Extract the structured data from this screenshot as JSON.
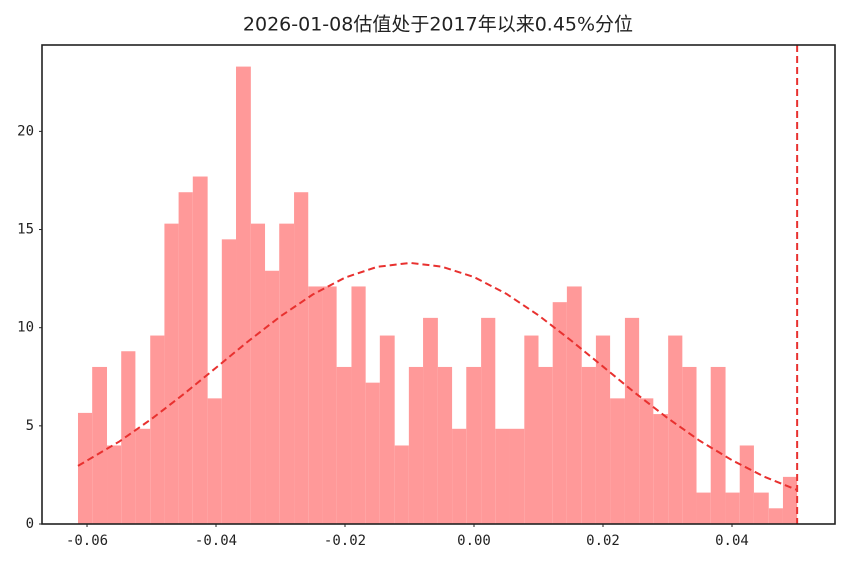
{
  "chart_data": {
    "type": "histogram",
    "title": "2026-01-08估值处于2017年以来0.45%分位",
    "bins": [
      -0.0614,
      -0.0592,
      -0.0569,
      -0.0547,
      -0.0525,
      -0.0502,
      -0.048,
      -0.0458,
      -0.0436,
      -0.0413,
      -0.0391,
      -0.0369,
      -0.0346,
      -0.0324,
      -0.0302,
      -0.0279,
      -0.0257,
      -0.0235,
      -0.0213,
      -0.019,
      -0.0168,
      -0.0146,
      -0.0123,
      -0.0101,
      -0.0079,
      -0.0056,
      -0.0034,
      -0.0012,
      0.0011,
      0.0033,
      0.0055,
      0.0078,
      0.01,
      0.0122,
      0.0144,
      0.0167,
      0.0189,
      0.0211,
      0.0234,
      0.0256,
      0.0278,
      0.0301,
      0.0323,
      0.0345,
      0.0367,
      0.039,
      0.0412,
      0.0434,
      0.0457,
      0.0479,
      0.0501
    ],
    "values": [
      5.66,
      8.0,
      4.0,
      8.8,
      4.85,
      9.6,
      15.3,
      16.9,
      17.7,
      6.4,
      14.5,
      23.3,
      15.3,
      12.9,
      15.3,
      16.9,
      12.1,
      12.1,
      8.0,
      12.1,
      7.2,
      9.6,
      4.0,
      8.0,
      10.5,
      8.0,
      4.85,
      8.0,
      10.5,
      4.85,
      4.85,
      9.6,
      8.0,
      11.3,
      12.1,
      8.0,
      9.6,
      6.4,
      10.5,
      6.4,
      5.6,
      9.6,
      8.0,
      1.6,
      8.0,
      1.6,
      4.0,
      1.6,
      0.8,
      2.4
    ],
    "color": "#ff9999",
    "curve": {
      "type": "line",
      "color": "#e8312f",
      "linestyle": "dashed",
      "x": [
        -0.0614,
        -0.055,
        -0.05,
        -0.045,
        -0.04,
        -0.035,
        -0.03,
        -0.025,
        -0.02,
        -0.015,
        -0.0099,
        -0.005,
        0,
        0.005,
        0.01,
        0.015,
        0.02,
        0.025,
        0.03,
        0.035,
        0.04,
        0.045,
        0.0501
      ],
      "y": [
        2.96,
        4.2,
        5.35,
        6.62,
        7.96,
        9.31,
        10.58,
        11.69,
        12.55,
        13.1,
        13.3,
        13.11,
        12.58,
        11.73,
        10.63,
        9.36,
        8.02,
        6.67,
        5.4,
        4.24,
        3.25,
        2.41,
        1.73
      ]
    },
    "vline": {
      "x": 0.0501,
      "color": "#e8312f",
      "linestyle": "dashed"
    },
    "xlim": [
      -0.06698,
      0.05597
    ],
    "ylim": [
      0,
      24.4
    ],
    "xticks": [
      {
        "value": -0.06,
        "label": "-0.06"
      },
      {
        "value": -0.04,
        "label": "-0.04"
      },
      {
        "value": -0.02,
        "label": "-0.02"
      },
      {
        "value": 0,
        "label": "0.00"
      },
      {
        "value": 0.02,
        "label": "0.02"
      },
      {
        "value": 0.04,
        "label": "0.04"
      }
    ],
    "yticks": [
      0,
      5,
      10,
      15,
      20
    ],
    "grid": false
  }
}
